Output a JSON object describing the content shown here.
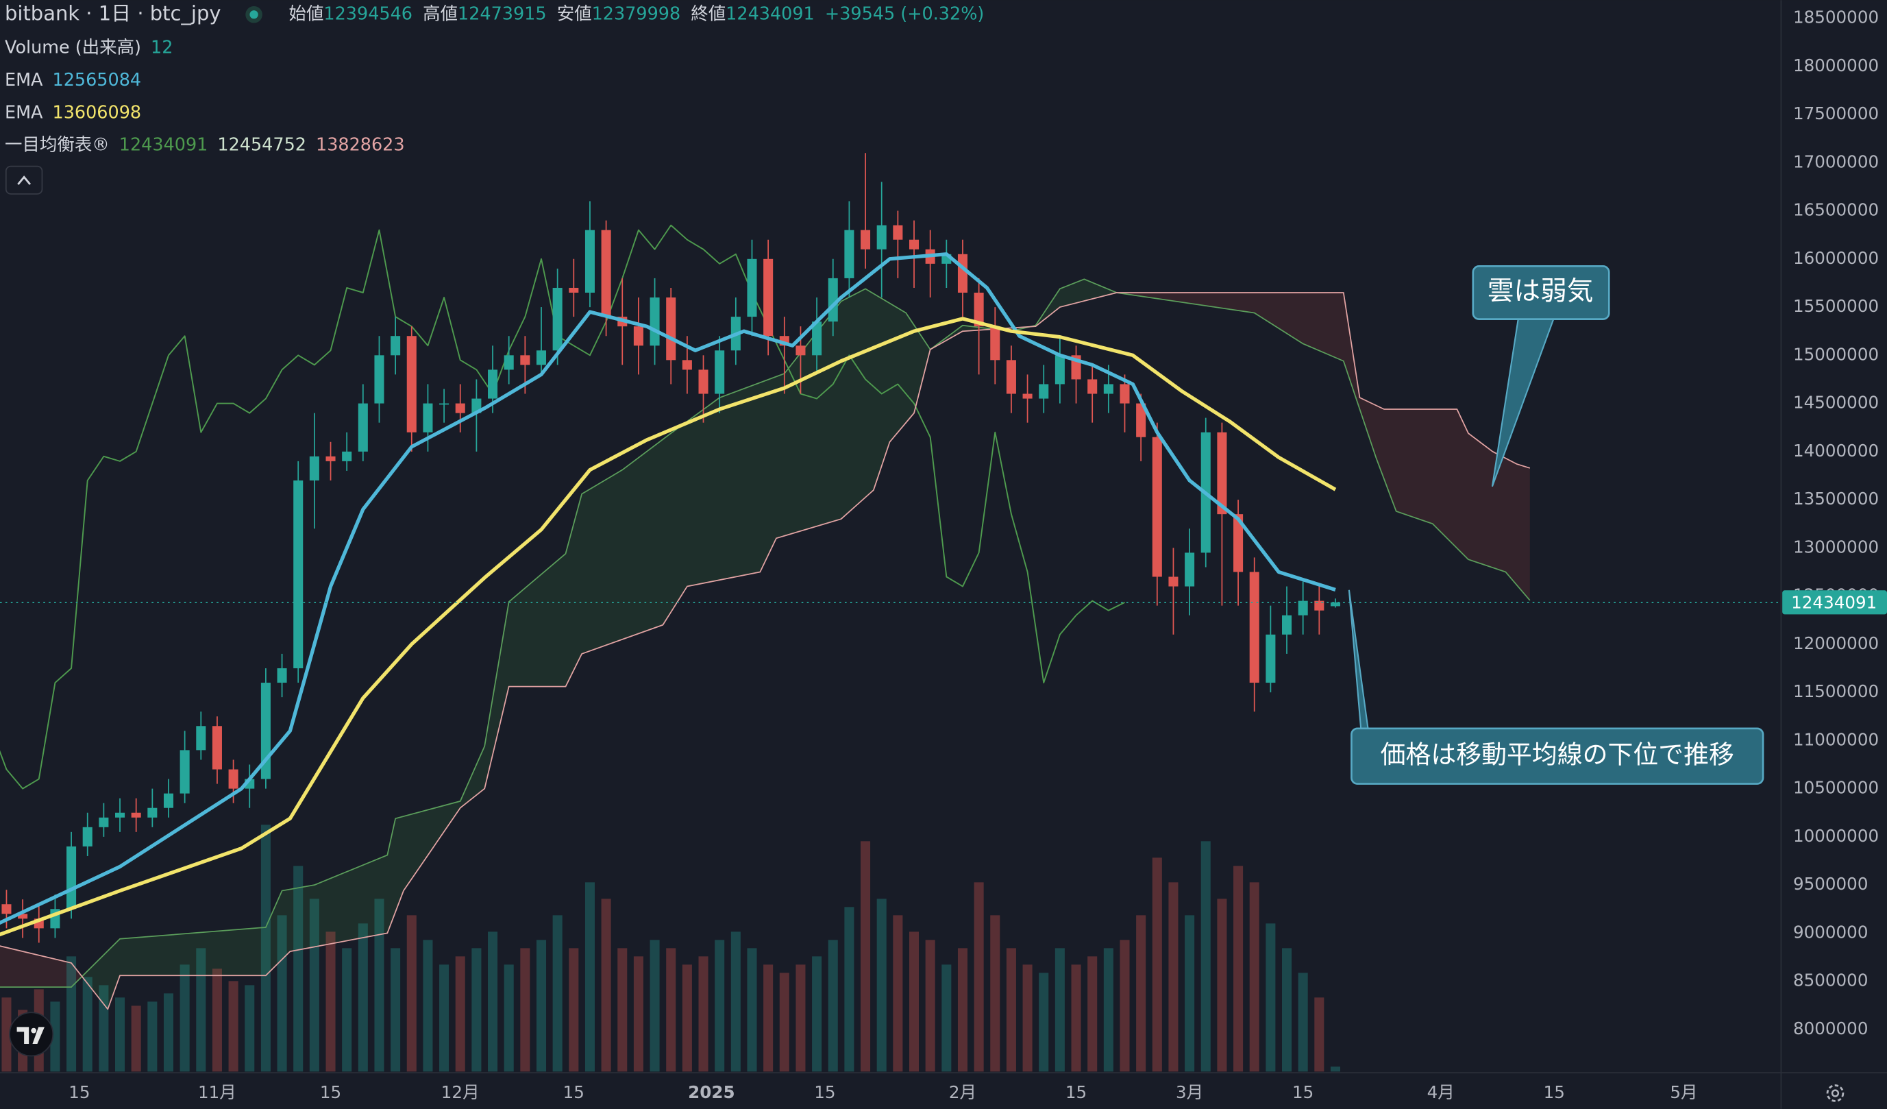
{
  "chart_data": {
    "type": "candlestick",
    "title": "bitbank · 1日 · btc_jpy",
    "ohlc_labels": {
      "open": "始値",
      "high": "高値",
      "low": "安値",
      "close": "終値"
    },
    "change": "+39545 (+0.32%)",
    "colors": {
      "up": "#26a69a",
      "down": "#e05752"
    },
    "xlim": [
      4.2,
      224
    ],
    "ylim": [
      7562500,
      18687500
    ],
    "yticks": [
      8000000,
      8500000,
      9000000,
      9500000,
      10000000,
      10500000,
      11000000,
      11500000,
      12000000,
      12500000,
      13000000,
      13500000,
      14000000,
      14500000,
      15000000,
      15500000,
      16000000,
      16500000,
      17000000,
      17500000,
      18000000,
      18500000
    ],
    "xticks": [
      {
        "value": 14,
        "label": "15"
      },
      {
        "value": 31,
        "label": "11月"
      },
      {
        "value": 45,
        "label": "15"
      },
      {
        "value": 61,
        "label": "12月"
      },
      {
        "value": 75,
        "label": "15"
      },
      {
        "value": 92,
        "label": "2025"
      },
      {
        "value": 106,
        "label": "15"
      },
      {
        "value": 123,
        "label": "2月"
      },
      {
        "value": 137,
        "label": "15"
      },
      {
        "value": 151,
        "label": "3月"
      },
      {
        "value": 165,
        "label": "15"
      },
      {
        "value": 182,
        "label": "4月"
      },
      {
        "value": 196,
        "label": "15"
      },
      {
        "value": 212,
        "label": "5月"
      }
    ],
    "x": [
      5,
      7,
      9,
      11,
      13,
      15,
      17,
      19,
      21,
      23,
      25,
      27,
      29,
      31,
      33,
      35,
      37,
      39,
      41,
      43,
      45,
      47,
      49,
      51,
      53,
      55,
      57,
      59,
      61,
      63,
      65,
      67,
      69,
      71,
      73,
      75,
      77,
      79,
      81,
      83,
      85,
      87,
      89,
      91,
      93,
      95,
      97,
      99,
      101,
      103,
      105,
      107,
      109,
      111,
      113,
      115,
      117,
      119,
      121,
      123,
      125,
      127,
      129,
      131,
      133,
      135,
      137,
      139,
      141,
      143,
      145,
      147,
      149,
      151,
      153,
      155,
      157,
      159,
      161,
      163,
      165,
      167,
      169
    ],
    "open": [
      9300000,
      9200000,
      9150000,
      9050000,
      9250000,
      9900000,
      10100000,
      10200000,
      10250000,
      10200000,
      10300000,
      10450000,
      10900000,
      11150000,
      10700000,
      10500000,
      10600000,
      11600000,
      11750000,
      13700000,
      13950000,
      13900000,
      14000000,
      14500000,
      15000000,
      15200000,
      14200000,
      14500000,
      14500000,
      14400000,
      14550000,
      14850000,
      15000000,
      14900000,
      15050000,
      15700000,
      15650000,
      16300000,
      15400000,
      15300000,
      15100000,
      15600000,
      14950000,
      14850000,
      14600000,
      15050000,
      15400000,
      16000000,
      15200000,
      15100000,
      15000000,
      15350000,
      15800000,
      16300000,
      16100000,
      16350000,
      16200000,
      16100000,
      15950000,
      16050000,
      15650000,
      15300000,
      14950000,
      14600000,
      14550000,
      14700000,
      15000000,
      14750000,
      14600000,
      14700000,
      14500000,
      14150000,
      12700000,
      12600000,
      12950000,
      14200000,
      13350000,
      12750000,
      11600000,
      12100000,
      12300000,
      12450000,
      12394546
    ],
    "high": [
      9450000,
      9350000,
      9300000,
      9400000,
      10050000,
      10250000,
      10350000,
      10400000,
      10400000,
      10500000,
      10600000,
      11100000,
      11300000,
      11250000,
      10800000,
      10750000,
      11750000,
      11900000,
      13900000,
      14400000,
      14100000,
      14200000,
      14700000,
      15200000,
      15400000,
      15300000,
      14700000,
      14650000,
      14700000,
      14750000,
      15100000,
      15200000,
      15200000,
      15500000,
      15900000,
      16000000,
      16600000,
      16400000,
      15800000,
      15600000,
      15800000,
      15700000,
      15200000,
      15000000,
      15200000,
      15600000,
      16200000,
      16200000,
      15400000,
      15300000,
      15600000,
      16000000,
      16600000,
      17100000,
      16800000,
      16500000,
      16400000,
      16300000,
      16200000,
      16200000,
      15800000,
      15500000,
      15100000,
      14800000,
      14900000,
      15200000,
      15100000,
      14900000,
      14900000,
      14800000,
      14600000,
      14300000,
      13000000,
      13200000,
      14350000,
      14300000,
      13500000,
      12900000,
      12400000,
      12600000,
      12650000,
      12600000,
      12473915
    ],
    "low": [
      9050000,
      8950000,
      8900000,
      8950000,
      9150000,
      9800000,
      10000000,
      10050000,
      10050000,
      10100000,
      10200000,
      10350000,
      10800000,
      10550000,
      10350000,
      10300000,
      10500000,
      11450000,
      11600000,
      13200000,
      13700000,
      13800000,
      13900000,
      14300000,
      14800000,
      14000000,
      14000000,
      14300000,
      14200000,
      14000000,
      14400000,
      14700000,
      14600000,
      14800000,
      14900000,
      15400000,
      15500000,
      15200000,
      14900000,
      14800000,
      14900000,
      14700000,
      14600000,
      14300000,
      14400000,
      14900000,
      15200000,
      15000000,
      14600000,
      14600000,
      14800000,
      15200000,
      15600000,
      15900000,
      15600000,
      15800000,
      15700000,
      15600000,
      15700000,
      15400000,
      14800000,
      14700000,
      14400000,
      14300000,
      14400000,
      14500000,
      14500000,
      14300000,
      14400000,
      14200000,
      13900000,
      12400000,
      12100000,
      12300000,
      12800000,
      12400000,
      12400000,
      11300000,
      11500000,
      11900000,
      12100000,
      12100000,
      12379998
    ],
    "close": [
      9200000,
      9150000,
      9050000,
      9250000,
      9900000,
      10100000,
      10200000,
      10250000,
      10200000,
      10300000,
      10450000,
      10900000,
      11150000,
      10700000,
      10500000,
      10600000,
      11600000,
      11750000,
      13700000,
      13950000,
      13900000,
      14000000,
      14500000,
      15000000,
      15200000,
      14200000,
      14500000,
      14500000,
      14400000,
      14550000,
      14850000,
      15000000,
      14900000,
      15050000,
      15700000,
      15650000,
      16300000,
      15400000,
      15300000,
      15100000,
      15600000,
      14950000,
      14850000,
      14600000,
      15050000,
      15400000,
      16000000,
      15200000,
      15100000,
      15000000,
      15350000,
      15800000,
      16300000,
      16100000,
      16350000,
      16200000,
      16100000,
      15950000,
      16050000,
      15650000,
      15300000,
      14950000,
      14600000,
      14550000,
      14700000,
      15000000,
      14750000,
      14600000,
      14700000,
      14500000,
      14150000,
      12700000,
      12600000,
      12950000,
      14200000,
      13350000,
      12750000,
      11600000,
      12100000,
      12300000,
      12450000,
      12350000,
      12434091
    ],
    "volume": {
      "name": "Volume (出来高)",
      "values": [
        180,
        150,
        200,
        170,
        280,
        230,
        210,
        180,
        160,
        170,
        190,
        260,
        300,
        250,
        220,
        210,
        600,
        380,
        500,
        420,
        340,
        300,
        360,
        420,
        300,
        380,
        320,
        260,
        280,
        300,
        340,
        260,
        300,
        320,
        380,
        300,
        460,
        420,
        300,
        280,
        320,
        300,
        260,
        280,
        320,
        340,
        300,
        260,
        240,
        260,
        280,
        320,
        400,
        560,
        420,
        380,
        340,
        320,
        260,
        300,
        460,
        380,
        300,
        260,
        240,
        300,
        260,
        280,
        300,
        320,
        380,
        520,
        460,
        380,
        560,
        420,
        500,
        460,
        360,
        300,
        240,
        180,
        12
      ]
    },
    "series": [
      {
        "name": "EMA",
        "color": "#4fb8d9",
        "x": [
          4,
          19,
          34,
          40,
          45,
          49,
          55,
          64,
          71,
          77,
          84,
          90,
          96,
          102,
          108,
          114,
          121,
          126,
          130,
          135,
          139,
          144,
          147,
          151,
          157,
          162,
          169
        ],
        "values": [
          9100000,
          9690000,
          10500000,
          11100000,
          12600000,
          13400000,
          14050000,
          14450000,
          14800000,
          15450000,
          15300000,
          15050000,
          15250000,
          15100000,
          15600000,
          16000000,
          16050000,
          15700000,
          15200000,
          15000000,
          14900000,
          14700000,
          14200000,
          13700000,
          13300000,
          12750000,
          12565084
        ]
      },
      {
        "name": "EMA",
        "color": "#f2e46b",
        "x": [
          4,
          19,
          34,
          40,
          49,
          55,
          64,
          71,
          77,
          84,
          93,
          101,
          108,
          117,
          123,
          129,
          135,
          144,
          150,
          156,
          162,
          169
        ],
        "values": [
          8980000,
          9440000,
          9880000,
          10190000,
          11440000,
          12000000,
          12690000,
          13190000,
          13810000,
          14120000,
          14440000,
          14660000,
          14940000,
          15250000,
          15380000,
          15250000,
          15190000,
          15000000,
          14630000,
          14310000,
          13940000,
          13606098
        ]
      }
    ],
    "ichimoku": {
      "name": "一目均衡表®",
      "lagging_color": "#4e9a4e",
      "span_a": {
        "color": "#5b9e5b",
        "label_color": "#cfe3cf",
        "x": [
          4,
          13,
          19,
          37,
          39,
          43,
          52,
          53,
          61,
          64,
          67,
          74,
          76,
          81,
          87,
          93,
          101,
          108,
          111,
          116,
          119,
          123,
          129,
          132,
          135,
          138,
          142,
          159,
          165,
          170,
          174,
          176.5,
          181,
          185.4,
          190,
          193
        ],
        "values": [
          8440000,
          8440000,
          8940000,
          9060000,
          9440000,
          9500000,
          9810000,
          10190000,
          10370000,
          10940000,
          12440000,
          12940000,
          13560000,
          13810000,
          14190000,
          14560000,
          14810000,
          15560000,
          15690000,
          15440000,
          15060000,
          15310000,
          15250000,
          15310000,
          15690000,
          15790000,
          15650000,
          15440000,
          15120000,
          14940000,
          13940000,
          13380000,
          13250000,
          12880000,
          12750000,
          12454752
        ]
      },
      "span_b": {
        "color": "#e3a4a4",
        "x": [
          4,
          13,
          17.5,
          19,
          37,
          40,
          52,
          54,
          61,
          64,
          67,
          74,
          76,
          86,
          89,
          98,
          100,
          108,
          112,
          114,
          117,
          119,
          123,
          132,
          135,
          142,
          170,
          172,
          175,
          184,
          185.4,
          188.4,
          191.4,
          193
        ],
        "values": [
          8870000,
          8690000,
          8210000,
          8560000,
          8560000,
          8810000,
          9000000,
          9440000,
          10300000,
          10500000,
          11560000,
          11560000,
          11900000,
          12200000,
          12600000,
          12750000,
          13100000,
          13300000,
          13600000,
          14100000,
          14400000,
          15060000,
          15250000,
          15300000,
          15500000,
          15650000,
          15650000,
          14560000,
          14440000,
          14440000,
          14190000,
          14000000,
          13870000,
          13828623
        ]
      }
    },
    "annotations": [
      {
        "text": "雲は弱気"
      },
      {
        "text": "価格は移動平均線の下位で推移"
      }
    ]
  }
}
